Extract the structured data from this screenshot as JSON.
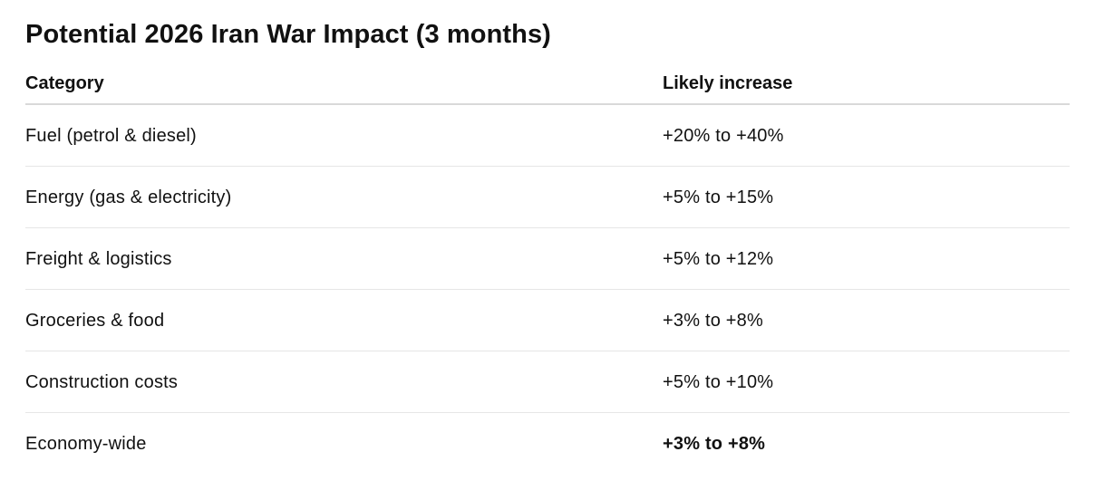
{
  "title": "Potential 2026 Iran War Impact (3 months)",
  "table": {
    "columns": [
      "Category",
      "Likely increase"
    ],
    "rows": [
      {
        "category": "Fuel (petrol & diesel)",
        "increase": "+20% to +40%"
      },
      {
        "category": "Energy (gas & electricity)",
        "increase": "+5% to +15%"
      },
      {
        "category": "Freight & logistics",
        "increase": "+5% to +12%"
      },
      {
        "category": "Groceries & food",
        "increase": "+3% to +8%"
      },
      {
        "category": "Construction costs",
        "increase": "+5% to +10%"
      },
      {
        "category": "Economy-wide",
        "increase": "+3% to +8%"
      }
    ]
  }
}
